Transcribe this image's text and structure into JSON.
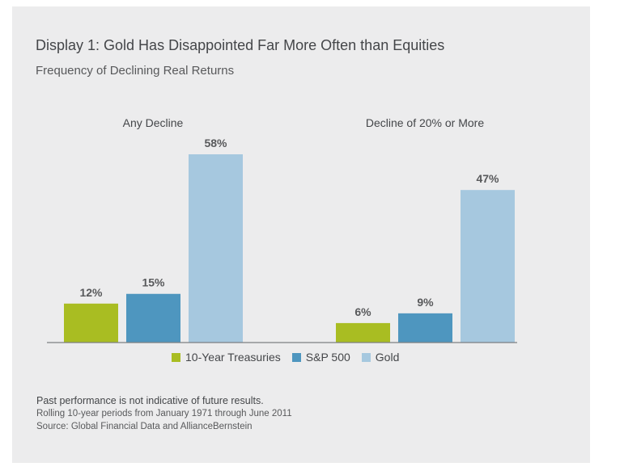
{
  "title": "Display 1: Gold Has Disappointed Far More Often than Equities",
  "subtitle": "Frequency of Declining Real Returns",
  "notes": {
    "disclaimer": "Past performance is not indicative of future results.",
    "period": "Rolling 10-year periods from January 1971 through June 2011",
    "source": "Source: Global Financial Data and AllianceBernstein"
  },
  "colors": {
    "treasuries": "#a9bd22",
    "sp500": "#4e96bf",
    "gold": "#a6c8df",
    "background": "#ececed"
  },
  "chart_data": {
    "type": "bar",
    "categories": [
      "Any Decline",
      "Decline of 20% or More"
    ],
    "series": [
      {
        "name": "10-Year Treasuries",
        "values": [
          12,
          6
        ],
        "labels": [
          "12%",
          "6%"
        ]
      },
      {
        "name": "S&P 500",
        "values": [
          15,
          9
        ],
        "labels": [
          "15%",
          "9%"
        ]
      },
      {
        "name": "Gold",
        "values": [
          58,
          47
        ],
        "labels": [
          "58%",
          "47%"
        ]
      }
    ],
    "ylim": [
      0,
      58
    ],
    "legend_position": "bottom",
    "grid": false
  }
}
